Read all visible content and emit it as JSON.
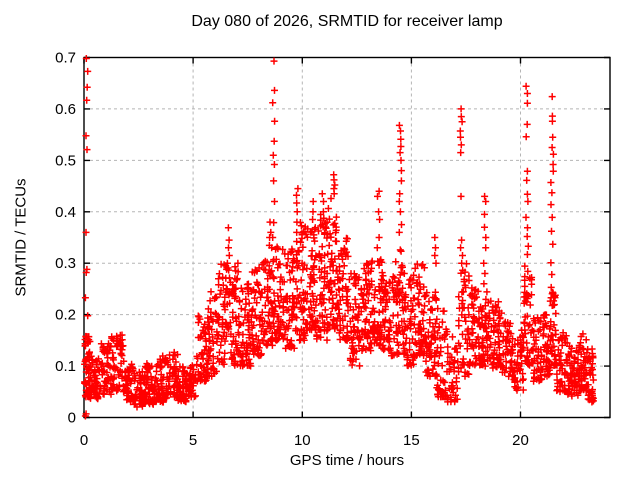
{
  "chart_data": {
    "type": "scatter",
    "title": "Day 080 of 2026, SRMTID for receiver lamp",
    "xlabel": "GPS time / hours",
    "ylabel": "SRMTID / TECUs",
    "xlim": [
      0,
      24.1
    ],
    "ylim": [
      0,
      0.7
    ],
    "grid": true,
    "legend": "none",
    "xticks": {
      "values": [
        0,
        5,
        10,
        15,
        20
      ],
      "labels": [
        "0",
        "5",
        "10",
        "15",
        "20"
      ]
    },
    "yticks": {
      "values": [
        0,
        0.1,
        0.2,
        0.3,
        0.4,
        0.5,
        0.6,
        0.7
      ],
      "labels": [
        "0",
        "0.1",
        "0.2",
        "0.3",
        "0.4",
        "0.5",
        "0.6",
        "0.7"
      ]
    },
    "colors": {
      "marker": "#ff0000",
      "grid": "#b5b5b5",
      "axis": "#000000",
      "text": "#000000",
      "background": "#ffffff"
    },
    "marker": {
      "shape": "plus",
      "size": 7,
      "stroke_width": 1.5
    },
    "band_format": [
      "x_start_hours",
      "x_end_hours",
      "y_min_TECUs",
      "y_max_TECUs",
      "point_count",
      "skew_toward_min"
    ],
    "density_bands": [
      [
        0.02,
        0.28,
        0.04,
        0.16,
        55,
        1.2
      ],
      [
        0.28,
        0.75,
        0.035,
        0.125,
        48,
        1.3
      ],
      [
        0.75,
        1.25,
        0.045,
        0.15,
        48,
        1.3
      ],
      [
        1.25,
        1.8,
        0.05,
        0.165,
        52,
        1.25
      ],
      [
        1.8,
        2.3,
        0.03,
        0.115,
        48,
        1.35
      ],
      [
        2.3,
        2.8,
        0.02,
        0.09,
        48,
        1.3
      ],
      [
        2.8,
        3.3,
        0.025,
        0.105,
        48,
        1.3
      ],
      [
        3.3,
        3.8,
        0.03,
        0.12,
        52,
        1.3
      ],
      [
        3.8,
        4.3,
        0.04,
        0.13,
        52,
        1.3
      ],
      [
        4.3,
        4.8,
        0.03,
        0.1,
        46,
        1.3
      ],
      [
        4.8,
        5.15,
        0.04,
        0.105,
        32,
        1.25
      ],
      [
        5.15,
        5.65,
        0.07,
        0.2,
        50,
        1.4
      ],
      [
        5.65,
        6.15,
        0.08,
        0.245,
        50,
        1.45
      ],
      [
        6.15,
        6.65,
        0.1,
        0.3,
        50,
        1.5
      ],
      [
        6.65,
        7.15,
        0.1,
        0.295,
        52,
        1.45
      ],
      [
        7.15,
        7.65,
        0.1,
        0.26,
        52,
        1.4
      ],
      [
        7.65,
        8.15,
        0.12,
        0.3,
        55,
        1.45
      ],
      [
        8.15,
        8.65,
        0.14,
        0.335,
        55,
        1.45
      ],
      [
        8.65,
        9.15,
        0.15,
        0.335,
        55,
        1.45
      ],
      [
        9.15,
        9.65,
        0.13,
        0.33,
        55,
        1.45
      ],
      [
        9.65,
        10.15,
        0.15,
        0.38,
        58,
        1.45
      ],
      [
        10.15,
        10.65,
        0.17,
        0.38,
        58,
        1.4
      ],
      [
        10.65,
        11.15,
        0.15,
        0.4,
        58,
        1.4
      ],
      [
        11.15,
        11.65,
        0.17,
        0.43,
        60,
        1.3
      ],
      [
        11.65,
        12.15,
        0.15,
        0.35,
        58,
        1.4
      ],
      [
        12.15,
        12.65,
        0.1,
        0.28,
        55,
        1.3
      ],
      [
        12.65,
        13.15,
        0.13,
        0.3,
        55,
        1.4
      ],
      [
        13.15,
        13.65,
        0.14,
        0.31,
        55,
        1.4
      ],
      [
        13.65,
        14.15,
        0.12,
        0.285,
        52,
        1.3
      ],
      [
        14.15,
        14.65,
        0.12,
        0.33,
        55,
        1.4
      ],
      [
        14.65,
        15.15,
        0.1,
        0.285,
        55,
        1.3
      ],
      [
        15.15,
        15.65,
        0.12,
        0.3,
        55,
        1.4
      ],
      [
        15.65,
        16.15,
        0.08,
        0.245,
        55,
        1.4
      ],
      [
        16.15,
        16.65,
        0.04,
        0.22,
        48,
        1.4
      ],
      [
        16.65,
        17.15,
        0.03,
        0.16,
        40,
        1.3
      ],
      [
        17.15,
        17.65,
        0.08,
        0.3,
        46,
        1.45
      ],
      [
        17.65,
        18.15,
        0.1,
        0.255,
        50,
        1.4
      ],
      [
        18.15,
        18.65,
        0.1,
        0.25,
        50,
        1.4
      ],
      [
        18.65,
        19.15,
        0.095,
        0.225,
        50,
        1.4
      ],
      [
        19.15,
        19.65,
        0.08,
        0.19,
        46,
        1.4
      ],
      [
        19.65,
        20.15,
        0.05,
        0.17,
        46,
        1.35
      ],
      [
        20.15,
        20.55,
        0.1,
        0.3,
        45,
        1.5
      ],
      [
        20.55,
        21.05,
        0.07,
        0.195,
        50,
        1.4
      ],
      [
        21.05,
        21.35,
        0.08,
        0.205,
        35,
        1.4
      ],
      [
        21.35,
        21.65,
        0.1,
        0.255,
        40,
        1.45
      ],
      [
        21.65,
        22.15,
        0.05,
        0.165,
        50,
        1.4
      ],
      [
        22.15,
        22.65,
        0.04,
        0.145,
        50,
        1.3
      ],
      [
        22.65,
        23.05,
        0.05,
        0.165,
        46,
        1.3
      ],
      [
        23.05,
        23.35,
        0.03,
        0.135,
        40,
        1.25
      ]
    ],
    "spike_columns": [
      {
        "x": 0.12,
        "ys": [
          0.003,
          0.007,
          0.198,
          0.233,
          0.282,
          0.288,
          0.36,
          0.521,
          0.548,
          0.617,
          0.642,
          0.673,
          0.698
        ]
      },
      {
        "x": 1.65,
        "ys": [
          0.14,
          0.15,
          0.16
        ]
      },
      {
        "x": 6.6,
        "ys": [
          0.3,
          0.315,
          0.33,
          0.345,
          0.369
        ]
      },
      {
        "x": 7.0,
        "ys": [
          0.27,
          0.285,
          0.3
        ]
      },
      {
        "x": 8.55,
        "ys": [
          0.33,
          0.35,
          0.36,
          0.38
        ]
      },
      {
        "x": 8.68,
        "ys": [
          0.307,
          0.35,
          0.379,
          0.42,
          0.46,
          0.492,
          0.51,
          0.537,
          0.576,
          0.612,
          0.636,
          0.693
        ]
      },
      {
        "x": 9.75,
        "ys": [
          0.36,
          0.38,
          0.4,
          0.417,
          0.432,
          0.445
        ]
      },
      {
        "x": 10.45,
        "ys": [
          0.385,
          0.4,
          0.42
        ]
      },
      {
        "x": 10.95,
        "ys": [
          0.4,
          0.42,
          0.435
        ]
      },
      {
        "x": 11.45,
        "ys": [
          0.435,
          0.445,
          0.452,
          0.462,
          0.472
        ]
      },
      {
        "x": 13.5,
        "ys": [
          0.33,
          0.35,
          0.385,
          0.4,
          0.43,
          0.44
        ]
      },
      {
        "x": 14.5,
        "ys": [
          0.36,
          0.375,
          0.4,
          0.42,
          0.435,
          0.46,
          0.48,
          0.5,
          0.515,
          0.527,
          0.541,
          0.557,
          0.568
        ]
      },
      {
        "x": 16.1,
        "ys": [
          0.3,
          0.315,
          0.33,
          0.35
        ]
      },
      {
        "x": 17.3,
        "ys": [
          0.3,
          0.315,
          0.33,
          0.345,
          0.43,
          0.515,
          0.53,
          0.545,
          0.557,
          0.575,
          0.585,
          0.6
        ]
      },
      {
        "x": 18.35,
        "ys": [
          0.26,
          0.28,
          0.3,
          0.33,
          0.35,
          0.37,
          0.395,
          0.42,
          0.43
        ]
      },
      {
        "x": 20.3,
        "ys": [
          0.284,
          0.317,
          0.333,
          0.352,
          0.369,
          0.389,
          0.42,
          0.434,
          0.461,
          0.479,
          0.546,
          0.57,
          0.611,
          0.63,
          0.644
        ]
      },
      {
        "x": 21.45,
        "ys": [
          0.253,
          0.278,
          0.301,
          0.337,
          0.362,
          0.389,
          0.414,
          0.437,
          0.457,
          0.479,
          0.492,
          0.512,
          0.525,
          0.545,
          0.576,
          0.586,
          0.624
        ]
      }
    ]
  }
}
